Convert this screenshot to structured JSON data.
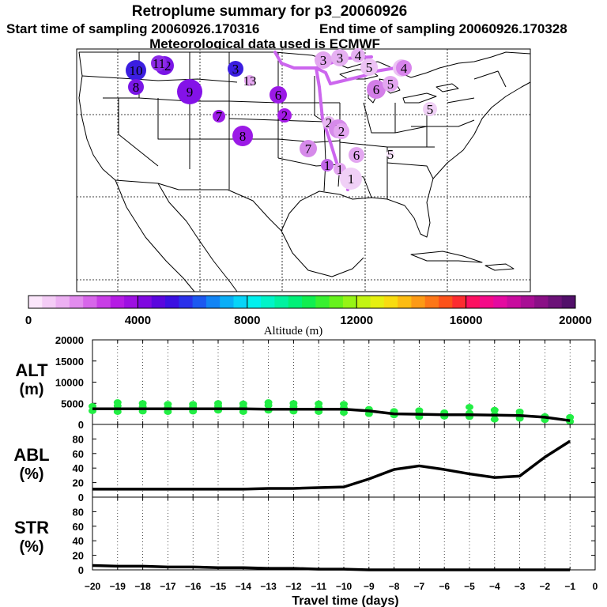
{
  "header": {
    "title": "Retroplume summary for p3_20060926",
    "start_label": "Start time of sampling 20060926.170316",
    "end_label": "End time of sampling 20060926.170328",
    "met_label": "Meteorological data used is ECMWF"
  },
  "chart_data": [
    {
      "type": "map",
      "title": "Retroplume summary for p3_20060926",
      "region": "United States (contiguous) with southern Canada, northern Mexico, Caribbean",
      "marker_labels": [
        {
          "day": "10",
          "color": "#3b1ee0"
        },
        {
          "day": "12",
          "color": "#7a16e6"
        },
        {
          "day": "11",
          "color": "#8c2ae6"
        },
        {
          "day": "8",
          "color": "#7a16e6"
        },
        {
          "day": "9",
          "color": "#8412e8"
        },
        {
          "day": "3",
          "color": "#3b1ee0"
        },
        {
          "day": "13",
          "color": "#e6a8f2"
        },
        {
          "day": "6",
          "color": "#9b1ae6"
        },
        {
          "day": "7",
          "color": "#9b1ae6"
        },
        {
          "day": "2",
          "color": "#a41ae6"
        },
        {
          "day": "8",
          "color": "#9b1ae6"
        },
        {
          "day": "3",
          "color": "#e3a6f0"
        },
        {
          "day": "3",
          "color": "#e6b0f2"
        },
        {
          "day": "4",
          "color": "#e6b0f2"
        },
        {
          "day": "5",
          "color": "#ecc2f4"
        },
        {
          "day": "6",
          "color": "#ecc2f4"
        },
        {
          "day": "6",
          "color": "#d37ee8"
        },
        {
          "day": "5",
          "color": "#e3a6f0"
        },
        {
          "day": "4",
          "color": "#d884ec"
        },
        {
          "day": "5",
          "color": "#f0d0f6"
        },
        {
          "day": "2",
          "color": "#e9b8f2"
        },
        {
          "day": "2",
          "color": "#d68aea"
        },
        {
          "day": "2",
          "color": "#e3a6f0"
        },
        {
          "day": "7",
          "color": "#d68aea"
        },
        {
          "day": "6",
          "color": "#e3a6f0"
        },
        {
          "day": "5",
          "color": "#f5e0f8"
        },
        {
          "day": "1",
          "color": "#c066e6"
        },
        {
          "day": "1",
          "color": "#e3a6f0"
        },
        {
          "day": "1",
          "color": "#f0d0f6"
        }
      ]
    },
    {
      "type": "colorbar",
      "xlabel": "Altitude (m)",
      "range": [
        0,
        20000
      ],
      "ticks": [
        0,
        4000,
        8000,
        12000,
        16000,
        20000
      ],
      "tick_labels": [
        "0",
        "4000",
        "8000",
        "12000",
        "16000",
        "20000"
      ],
      "colors": [
        "#fbe6fb",
        "#f4ccf6",
        "#ecb0f2",
        "#e28cee",
        "#d766ea",
        "#c83ee6",
        "#b51ce4",
        "#9d10e2",
        "#7f08e0",
        "#5a06de",
        "#3b10e2",
        "#2a30ea",
        "#1c58f0",
        "#1284f4",
        "#0aaef6",
        "#06d4f8",
        "#00f0ee",
        "#00f4c8",
        "#00f2a0",
        "#00f078",
        "#10ee50",
        "#38f030",
        "#66f21c",
        "#96f416",
        "#c2f412",
        "#e6f010",
        "#f8dc10",
        "#fcbc12",
        "#fc9a16",
        "#fc7618",
        "#fc521a",
        "#fc2c30",
        "#fc1060",
        "#f40a88",
        "#e40aa0",
        "#c80c9e",
        "#a80e94",
        "#8a1086",
        "#6c1278",
        "#52106a"
      ]
    },
    {
      "type": "scatter+line",
      "ylabel": "ALT\n(m)",
      "ylabel_lines": [
        "ALT",
        "(m)"
      ],
      "ylim": [
        0,
        20000
      ],
      "yticks": [
        0,
        5000,
        10000,
        15000,
        20000
      ],
      "ytick_labels": [
        "0",
        "5000",
        "10000",
        "15000",
        "20000"
      ],
      "x": [
        -20,
        -19,
        -18,
        -17,
        -16,
        -15,
        -14,
        -13,
        -12,
        -11,
        -10,
        -9,
        -8,
        -7,
        -6,
        -5,
        -4,
        -3,
        -2,
        -1
      ],
      "series": [
        {
          "name": "median altitude",
          "values": [
            3700,
            3700,
            3700,
            3700,
            3700,
            3700,
            3700,
            3600,
            3600,
            3600,
            3600,
            3200,
            2500,
            2400,
            2300,
            2300,
            2200,
            2100,
            1700,
            900
          ]
        }
      ],
      "scatter": [
        [
          -20,
          3200
        ],
        [
          -20,
          4300
        ],
        [
          -19,
          3000
        ],
        [
          -19,
          4400
        ],
        [
          -19,
          5200
        ],
        [
          -18,
          3100
        ],
        [
          -18,
          4200
        ],
        [
          -18,
          5000
        ],
        [
          -17,
          3000
        ],
        [
          -17,
          4000
        ],
        [
          -17,
          4800
        ],
        [
          -16,
          3100
        ],
        [
          -16,
          4200
        ],
        [
          -16,
          4800
        ],
        [
          -15,
          3300
        ],
        [
          -15,
          4300
        ],
        [
          -15,
          5000
        ],
        [
          -14,
          3000
        ],
        [
          -14,
          4100
        ],
        [
          -14,
          4900
        ],
        [
          -13,
          3300
        ],
        [
          -13,
          4500
        ],
        [
          -13,
          5200
        ],
        [
          -12,
          3100
        ],
        [
          -12,
          4200
        ],
        [
          -12,
          5000
        ],
        [
          -11,
          3000
        ],
        [
          -11,
          4000
        ],
        [
          -11,
          4900
        ],
        [
          -10,
          2800
        ],
        [
          -10,
          3900
        ],
        [
          -10,
          4800
        ],
        [
          -9,
          2500
        ],
        [
          -9,
          3600
        ],
        [
          -8,
          2200
        ],
        [
          -8,
          3100
        ],
        [
          -7,
          1800
        ],
        [
          -7,
          2600
        ],
        [
          -7,
          3300
        ],
        [
          -6,
          1900
        ],
        [
          -6,
          2800
        ],
        [
          -5,
          1800
        ],
        [
          -5,
          2700
        ],
        [
          -5,
          4100
        ],
        [
          -4,
          1200
        ],
        [
          -4,
          2300
        ],
        [
          -4,
          3400
        ],
        [
          -3,
          1400
        ],
        [
          -3,
          2300
        ],
        [
          -3,
          3000
        ],
        [
          -2,
          1100
        ],
        [
          -2,
          1900
        ],
        [
          -1,
          700
        ],
        [
          -1,
          1700
        ]
      ]
    },
    {
      "type": "line",
      "ylabel": "ABL\n(%)",
      "ylabel_lines": [
        "ABL",
        "(%)"
      ],
      "ylim": [
        0,
        100
      ],
      "yticks": [
        0,
        20,
        40,
        60,
        80
      ],
      "ytick_labels": [
        "0",
        "20",
        "40",
        "60",
        "80"
      ],
      "x": [
        -20,
        -19,
        -18,
        -17,
        -16,
        -15,
        -14,
        -13,
        -12,
        -11,
        -10,
        -9,
        -8,
        -7,
        -6,
        -5,
        -4,
        -3,
        -2,
        -1
      ],
      "series": [
        {
          "name": "ABL fraction",
          "values": [
            11,
            11,
            11,
            11,
            11,
            11,
            11,
            12,
            12,
            13,
            14,
            25,
            38,
            43,
            38,
            32,
            27,
            29,
            55,
            77
          ]
        }
      ]
    },
    {
      "type": "line",
      "ylabel": "STR\n(%)",
      "ylabel_lines": [
        "STR",
        "(%)"
      ],
      "ylim": [
        0,
        100
      ],
      "yticks": [
        0,
        20,
        40,
        60,
        80
      ],
      "ytick_labels": [
        "0",
        "20",
        "40",
        "60",
        "80"
      ],
      "x": [
        -20,
        -19,
        -18,
        -17,
        -16,
        -15,
        -14,
        -13,
        -12,
        -11,
        -10,
        -9,
        -8,
        -7,
        -6,
        -5,
        -4,
        -3,
        -2,
        -1
      ],
      "series": [
        {
          "name": "STR fraction",
          "values": [
            6,
            5,
            5,
            4,
            4,
            3,
            3,
            2,
            2,
            1,
            1,
            0,
            0,
            0,
            0,
            0,
            0,
            0,
            0,
            0
          ]
        }
      ],
      "xlabel": "Travel time (days)",
      "xticks": [
        -20,
        -19,
        -18,
        -17,
        -16,
        -15,
        -14,
        -13,
        -12,
        -11,
        -10,
        -9,
        -8,
        -7,
        -6,
        -5,
        -4,
        -3,
        -2,
        -1,
        0
      ],
      "xtick_labels": [
        "−20",
        "−19",
        "−18",
        "−17",
        "−16",
        "−15",
        "−14",
        "−13",
        "−12",
        "−11",
        "−10",
        "−9",
        "−8",
        "−7",
        "−6",
        "−5",
        "−4",
        "−3",
        "−2",
        "−1",
        "0"
      ]
    }
  ]
}
